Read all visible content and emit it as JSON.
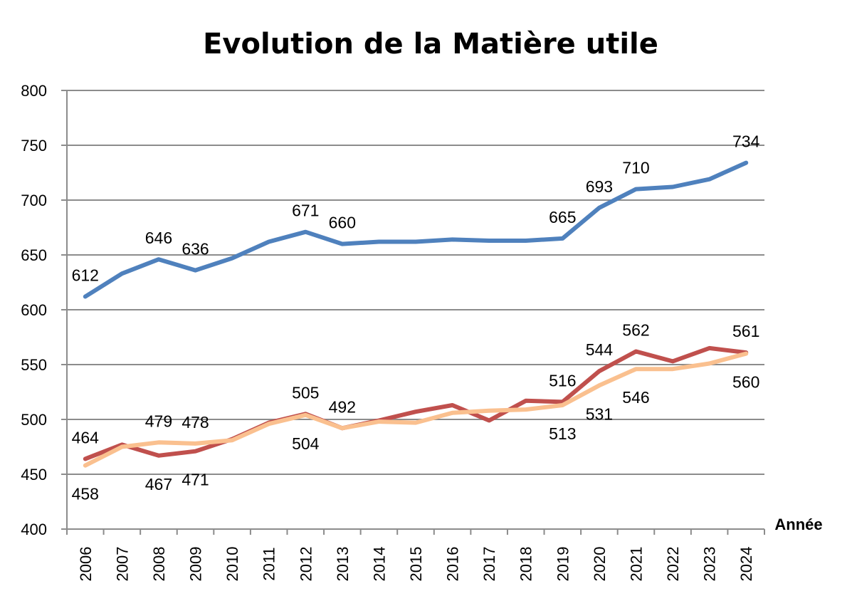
{
  "chart_data": {
    "type": "line",
    "title": "Evolution de la Matière utile",
    "xlabel": "Année",
    "ylabel": "",
    "ylim": [
      400,
      800
    ],
    "yticks": [
      400,
      450,
      500,
      550,
      600,
      650,
      700,
      750,
      800
    ],
    "grid": true,
    "legend": "none",
    "categories": [
      "2006",
      "2007",
      "2008",
      "2009",
      "2010",
      "2011",
      "2012",
      "2013",
      "2014",
      "2015",
      "2016",
      "2017",
      "2018",
      "2019",
      "2020",
      "2021",
      "2022",
      "2023",
      "2024"
    ],
    "series": [
      {
        "color": "#4f81bd",
        "values": [
          612,
          633,
          646,
          636,
          647,
          662,
          671,
          660,
          662,
          662,
          664,
          663,
          663,
          665,
          693,
          710,
          712,
          719,
          734
        ],
        "labels": [
          {
            "i": 0,
            "text": "612",
            "pos": "above"
          },
          {
            "i": 2,
            "text": "646",
            "pos": "above"
          },
          {
            "i": 3,
            "text": "636",
            "pos": "above"
          },
          {
            "i": 6,
            "text": "671",
            "pos": "above"
          },
          {
            "i": 7,
            "text": "660",
            "pos": "above"
          },
          {
            "i": 13,
            "text": "665",
            "pos": "above"
          },
          {
            "i": 14,
            "text": "693",
            "pos": "above"
          },
          {
            "i": 15,
            "text": "710",
            "pos": "above"
          },
          {
            "i": 18,
            "text": "734",
            "pos": "above"
          }
        ]
      },
      {
        "color": "#c0504d",
        "values": [
          464,
          477,
          467,
          471,
          482,
          497,
          505,
          492,
          499,
          507,
          513,
          499,
          517,
          516,
          544,
          562,
          553,
          565,
          561
        ],
        "labels": [
          {
            "i": 0,
            "text": "464",
            "pos": "above"
          },
          {
            "i": 2,
            "text": "467",
            "pos": "below"
          },
          {
            "i": 3,
            "text": "471",
            "pos": "below"
          },
          {
            "i": 6,
            "text": "505",
            "pos": "above"
          },
          {
            "i": 7,
            "text": "492",
            "pos": "above"
          },
          {
            "i": 13,
            "text": "516",
            "pos": "above"
          },
          {
            "i": 14,
            "text": "544",
            "pos": "above"
          },
          {
            "i": 15,
            "text": "562",
            "pos": "above"
          },
          {
            "i": 18,
            "text": "561",
            "pos": "above"
          }
        ]
      },
      {
        "color": "#fac08f",
        "values": [
          458,
          475,
          479,
          478,
          481,
          496,
          504,
          492,
          498,
          497,
          506,
          508,
          509,
          513,
          531,
          546,
          546,
          551,
          560
        ],
        "labels": [
          {
            "i": 0,
            "text": "458",
            "pos": "below"
          },
          {
            "i": 2,
            "text": "479",
            "pos": "above"
          },
          {
            "i": 3,
            "text": "478",
            "pos": "above"
          },
          {
            "i": 6,
            "text": "504",
            "pos": "below"
          },
          {
            "i": 13,
            "text": "513",
            "pos": "below"
          },
          {
            "i": 14,
            "text": "531",
            "pos": "below"
          },
          {
            "i": 15,
            "text": "546",
            "pos": "below"
          },
          {
            "i": 18,
            "text": "560",
            "pos": "below"
          }
        ]
      }
    ]
  }
}
